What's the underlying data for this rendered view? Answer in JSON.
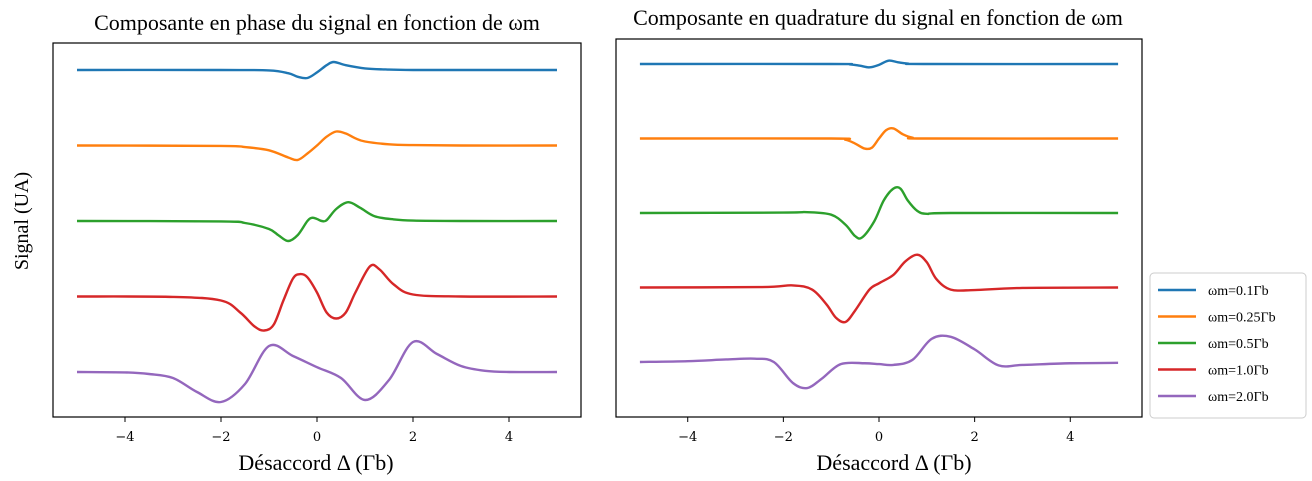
{
  "chart_data": [
    {
      "type": "line",
      "title": "Composante en phase du signal en fonction de ωm",
      "xlabel": "Désaccord Δ (Γb)",
      "ylabel": "Signal (UA)",
      "xlim": [
        -5.5,
        5.5
      ],
      "xticks": [
        -4,
        -2,
        0,
        2,
        4
      ],
      "xtick_labels": [
        "−4",
        "−2",
        "0",
        "2",
        "4"
      ],
      "offsets_descending": true,
      "series": [
        {
          "name": "ωm=0.1Γb",
          "color": "#1f77b4",
          "x": [
            -5,
            -2,
            -1,
            -0.6,
            -0.4,
            -0.2,
            0,
            0.2,
            0.35,
            0.6,
            1,
            1.5,
            2,
            3,
            5
          ],
          "y": [
            0,
            0,
            -0.01,
            -0.08,
            -0.17,
            -0.2,
            -0.06,
            0.12,
            0.2,
            0.12,
            0.04,
            0.01,
            0,
            0,
            0
          ]
        },
        {
          "name": "ωm=0.25Γb",
          "color": "#ff7f0e",
          "x": [
            -5,
            -2,
            -1.5,
            -1,
            -0.6,
            -0.4,
            -0.2,
            0,
            0.2,
            0.4,
            0.6,
            0.8,
            1,
            1.5,
            2,
            3,
            5
          ],
          "y": [
            0,
            -0.01,
            -0.04,
            -0.12,
            -0.3,
            -0.36,
            -0.2,
            0,
            0.22,
            0.35,
            0.3,
            0.18,
            0.1,
            0.03,
            0.01,
            0,
            0
          ]
        },
        {
          "name": "ωm=0.5Γb",
          "color": "#2ca02c",
          "x": [
            -5,
            -2,
            -1.5,
            -1,
            -0.8,
            -0.6,
            -0.4,
            -0.2,
            -0.1,
            0,
            0.1,
            0.2,
            0.4,
            0.65,
            0.9,
            1.2,
            1.6,
            2,
            3,
            5
          ],
          "y": [
            0,
            -0.01,
            -0.05,
            -0.2,
            -0.36,
            -0.5,
            -0.35,
            0.0,
            0.08,
            0.05,
            0.0,
            0.02,
            0.3,
            0.47,
            0.33,
            0.12,
            0.04,
            0.01,
            0,
            0
          ]
        },
        {
          "name": "ωm=1.0Γb",
          "color": "#d62728",
          "x": [
            -5,
            -3,
            -2,
            -1.6,
            -1.3,
            -1.1,
            -0.9,
            -0.7,
            -0.5,
            -0.35,
            -0.2,
            0,
            0.2,
            0.4,
            0.6,
            0.8,
            1.1,
            1.3,
            1.6,
            2,
            3,
            5
          ],
          "y": [
            0,
            -0.01,
            -0.1,
            -0.4,
            -0.75,
            -0.85,
            -0.7,
            -0.1,
            0.45,
            0.56,
            0.48,
            0.1,
            -0.4,
            -0.55,
            -0.4,
            0.1,
            0.75,
            0.68,
            0.3,
            0.05,
            0,
            0
          ]
        },
        {
          "name": "ωm=2.0Γb",
          "color": "#9467bd",
          "x": [
            -5,
            -4,
            -3.5,
            -3,
            -2.5,
            -2,
            -1.5,
            -1,
            -0.5,
            0,
            0.5,
            1,
            1.5,
            2,
            2.5,
            3,
            3.5,
            4,
            5
          ],
          "y": [
            0,
            -0.01,
            -0.05,
            -0.15,
            -0.5,
            -0.75,
            -0.3,
            0.65,
            0.4,
            0.12,
            -0.15,
            -0.7,
            -0.2,
            0.75,
            0.45,
            0.15,
            0.03,
            0,
            0
          ]
        }
      ]
    },
    {
      "type": "line",
      "title": "Composante en quadrature du signal en fonction de ωm",
      "xlabel": "Désaccord Δ (Γb)",
      "xlim": [
        -5.5,
        5.5
      ],
      "xticks": [
        -4,
        -2,
        0,
        2,
        4
      ],
      "xtick_labels": [
        "−4",
        "−2",
        "0",
        "2",
        "4"
      ],
      "offsets_descending": true,
      "series": [
        {
          "name": "ωm=0.1Γb",
          "color": "#1f77b4",
          "x": [
            -5,
            -1,
            -0.6,
            -0.4,
            -0.2,
            0,
            0.2,
            0.4,
            0.6,
            1,
            5
          ],
          "y": [
            0,
            0,
            -0.01,
            -0.04,
            -0.08,
            -0.02,
            0.08,
            0.04,
            0.01,
            0,
            0
          ]
        },
        {
          "name": "ωm=0.25Γb",
          "color": "#ff7f0e",
          "x": [
            -5,
            -1,
            -0.7,
            -0.5,
            -0.3,
            -0.15,
            0,
            0.15,
            0.3,
            0.5,
            0.7,
            1,
            5
          ],
          "y": [
            0,
            0,
            -0.03,
            -0.12,
            -0.24,
            -0.22,
            0,
            0.2,
            0.24,
            0.1,
            0.02,
            0,
            0
          ]
        },
        {
          "name": "ωm=0.5Γb",
          "color": "#2ca02c",
          "x": [
            -5,
            -2,
            -1.5,
            -1,
            -0.7,
            -0.5,
            -0.35,
            -0.1,
            0.1,
            0.3,
            0.45,
            0.6,
            0.8,
            1,
            1.5,
            5
          ],
          "y": [
            0,
            0.01,
            0.02,
            -0.04,
            -0.28,
            -0.55,
            -0.58,
            -0.2,
            0.3,
            0.58,
            0.58,
            0.3,
            0.05,
            -0.02,
            0,
            0
          ]
        },
        {
          "name": "ωm=1.0Γb",
          "color": "#d62728",
          "x": [
            -5,
            -2.5,
            -1.8,
            -1.4,
            -1.1,
            -0.9,
            -0.7,
            -0.5,
            -0.2,
            0,
            0.3,
            0.55,
            0.8,
            1.0,
            1.2,
            1.5,
            2,
            3,
            5
          ],
          "y": [
            0,
            0.01,
            0.05,
            -0.05,
            -0.4,
            -0.72,
            -0.82,
            -0.55,
            -0.05,
            0.1,
            0.3,
            0.62,
            0.78,
            0.6,
            0.2,
            -0.05,
            -0.06,
            -0.01,
            0
          ]
        },
        {
          "name": "ωm=2.0Γb",
          "color": "#9467bd",
          "x": [
            -5,
            -4,
            -3.2,
            -2.6,
            -2.2,
            -1.8,
            -1.5,
            -1.2,
            -0.8,
            -0.3,
            0,
            0.3,
            0.7,
            1.1,
            1.5,
            2,
            2.5,
            3,
            4,
            5
          ],
          "y": [
            0,
            0.02,
            0.06,
            0.08,
            0.0,
            -0.5,
            -0.62,
            -0.4,
            -0.05,
            -0.03,
            -0.05,
            -0.07,
            0.05,
            0.55,
            0.6,
            0.3,
            -0.08,
            -0.07,
            -0.03,
            -0.02
          ]
        }
      ]
    }
  ],
  "legend": {
    "placement": "right-lower",
    "entries": [
      {
        "label": "ωm=0.1Γb",
        "color": "#1f77b4"
      },
      {
        "label": "ωm=0.25Γb",
        "color": "#ff7f0e"
      },
      {
        "label": "ωm=0.5Γb",
        "color": "#2ca02c"
      },
      {
        "label": "ωm=1.0Γb",
        "color": "#d62728"
      },
      {
        "label": "ωm=2.0Γb",
        "color": "#9467bd"
      }
    ]
  }
}
